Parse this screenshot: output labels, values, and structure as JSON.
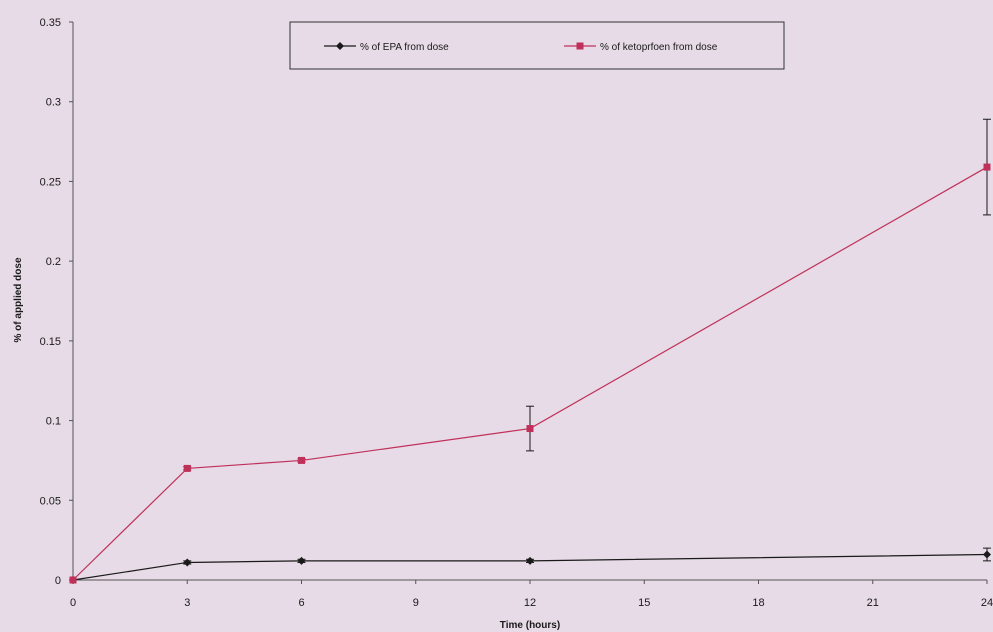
{
  "chart_data": {
    "type": "line",
    "title": "",
    "xlabel": "Time (hours)",
    "ylabel": "% of applied dose",
    "x": [
      0,
      3,
      6,
      12,
      24
    ],
    "xticks": [
      0,
      3,
      6,
      9,
      12,
      15,
      18,
      21,
      24
    ],
    "yticks": [
      0,
      0.05,
      0.1,
      0.15,
      0.2,
      0.25,
      0.3,
      0.35
    ],
    "xlim": [
      0,
      24
    ],
    "ylim": [
      0,
      0.35
    ],
    "grid": false,
    "legend_position": "top-center",
    "series": [
      {
        "name": "% of EPA from dose",
        "color": "#1a1a1a",
        "marker": "diamond",
        "values": [
          0,
          0.011,
          0.012,
          0.012,
          0.016
        ],
        "error": [
          0,
          0.001,
          0.001,
          0.001,
          0.004
        ]
      },
      {
        "name": "% of ketoprfoen from dose",
        "color": "#c0305a",
        "marker": "square",
        "values": [
          0,
          0.07,
          0.075,
          0.095,
          0.259
        ],
        "error": [
          0,
          0.001,
          0.001,
          0.014,
          0.03
        ]
      }
    ]
  }
}
